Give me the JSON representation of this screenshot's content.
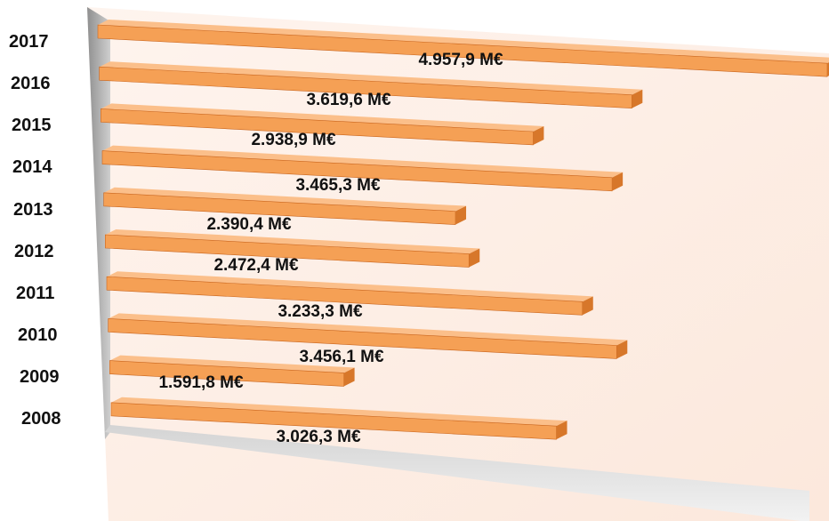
{
  "chart_data": {
    "type": "bar",
    "orientation": "horizontal",
    "perspective": "3d",
    "title": "",
    "xlabel": "",
    "ylabel": "",
    "categories": [
      "2017",
      "2016",
      "2015",
      "2014",
      "2013",
      "2012",
      "2011",
      "2010",
      "2009",
      "2008"
    ],
    "values": [
      4957.9,
      3619.6,
      2938.9,
      3465.3,
      2390.4,
      2472.4,
      3233.3,
      3456.1,
      1591.8,
      3026.3
    ],
    "value_labels": [
      "4.957,9 M€",
      "3.619,6 M€",
      "2.938,9 M€",
      "3.465,3 M€",
      "2.390,4 M€",
      "2.472,4 M€",
      "3.233,3 M€",
      "3.456,1 M€",
      "1.591,8 M€",
      "3.026,3 M€"
    ],
    "unit": "M€",
    "xlim": [
      0,
      4957.9
    ],
    "grid": false,
    "legend": "none",
    "colors": {
      "bar_top": "#fbbf8a",
      "bar_front": "#f5a055",
      "bar_end": "#d7772a",
      "bar_edge": "#c9641c",
      "wall": "#fdf0e8",
      "wall_side": "#b9b9b9",
      "floor": "#e3e3e3"
    }
  }
}
